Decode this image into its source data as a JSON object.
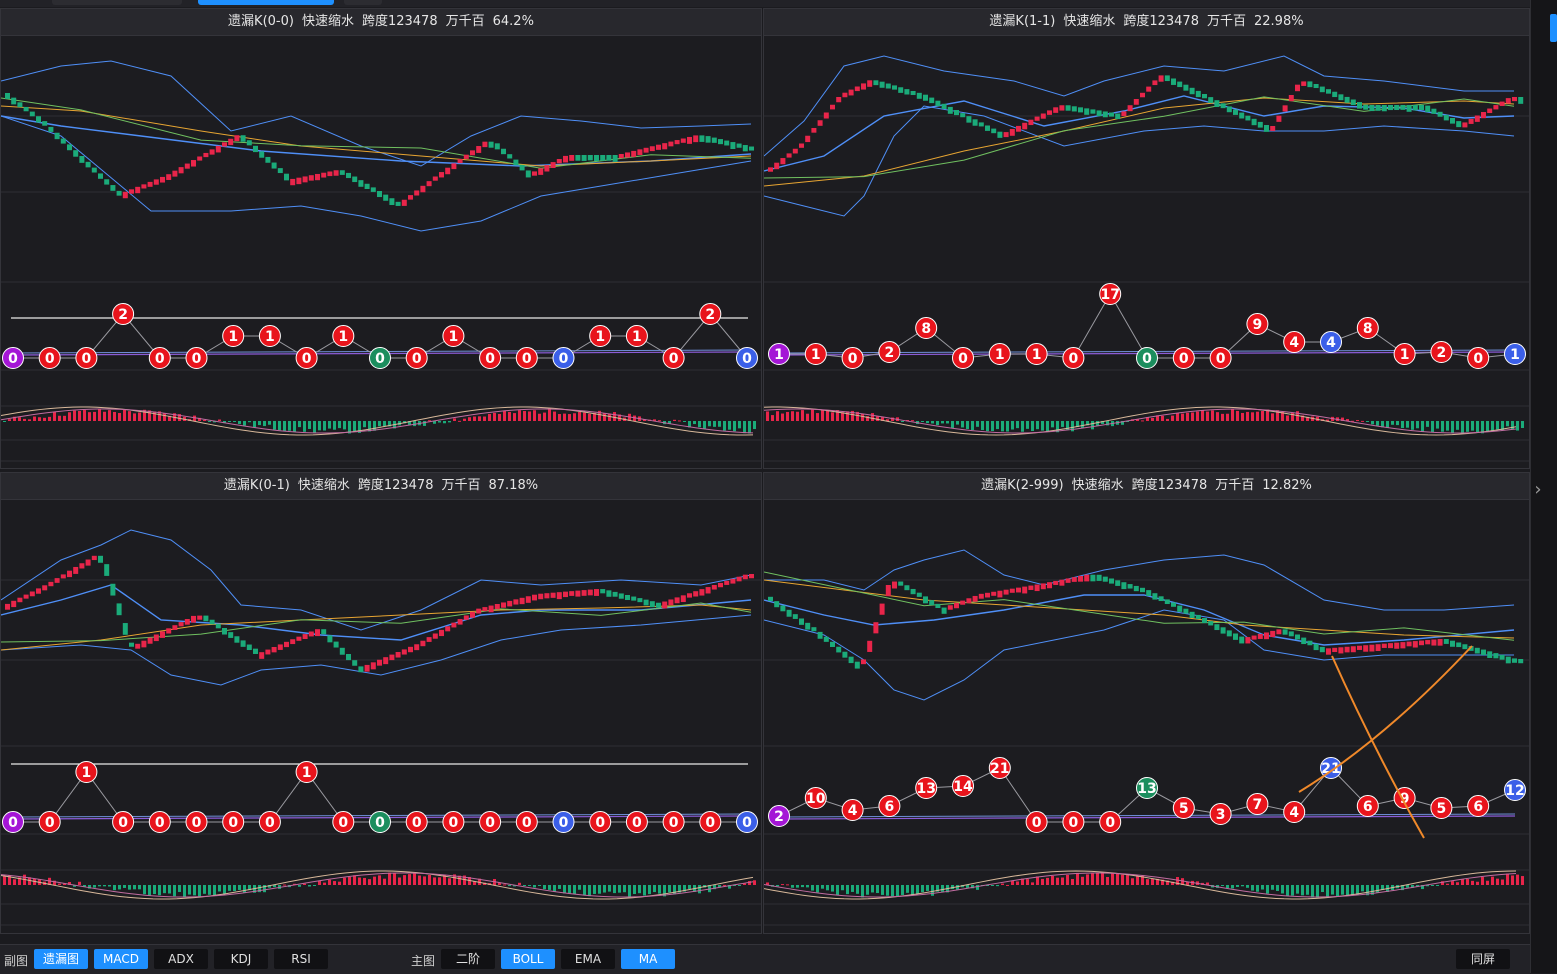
{
  "colors": {
    "up": "#e8254a",
    "down": "#1bab7a",
    "boll": "#4f8ff7",
    "ma_green": "#70c060",
    "ma_yellow": "#e7a532",
    "circle_red": "#e8141c",
    "circle_green": "#1b8e5e",
    "circle_blue": "#3b5fe8",
    "circle_purple": "#a416d6",
    "annotation": "#f0892a"
  },
  "panels": [
    {
      "id": "p00",
      "title": "遗漏K(0-0)",
      "mode": "快速缩水",
      "span": "跨度123478",
      "digits": "万千百",
      "pct": "64.2%"
    },
    {
      "id": "p11",
      "title": "遗漏K(1-1)",
      "mode": "快速缩水",
      "span": "跨度123478",
      "digits": "万千百",
      "pct": "22.98%"
    },
    {
      "id": "p01",
      "title": "遗漏K(0-1)",
      "mode": "快速缩水",
      "span": "跨度123478",
      "digits": "万千百",
      "pct": "87.18%"
    },
    {
      "id": "p2999",
      "title": "遗漏K(2-999)",
      "mode": "快速缩水",
      "span": "跨度123478",
      "digits": "万千百",
      "pct": "12.82%"
    }
  ],
  "chart_data": [
    {
      "type": "line",
      "panel": "遗漏K(0-0)",
      "series": [
        {
          "values": [
            0,
            0,
            0,
            2,
            0,
            0,
            1,
            1,
            0,
            1,
            0,
            0,
            1,
            0,
            0,
            0,
            1,
            1,
            0,
            2,
            0
          ]
        },
        {
          "values": [
            0,
            0,
            0,
            2,
            0,
            0,
            1,
            1,
            0,
            1,
            0,
            0,
            1,
            0,
            0,
            0,
            1,
            1,
            0,
            2,
            0
          ]
        }
      ],
      "markers": [
        {
          "label": "0",
          "color": "purple"
        },
        {
          "label": "0",
          "color": "red"
        },
        {
          "label": "0",
          "color": "red"
        },
        {
          "label": "2",
          "color": "red"
        },
        {
          "label": "0",
          "color": "red"
        },
        {
          "label": "0",
          "color": "red"
        },
        {
          "label": "1",
          "color": "red"
        },
        {
          "label": "1",
          "color": "red"
        },
        {
          "label": "0",
          "color": "red"
        },
        {
          "label": "1",
          "color": "red"
        },
        {
          "label": "0",
          "color": "green"
        },
        {
          "label": "0",
          "color": "red"
        },
        {
          "label": "1",
          "color": "red"
        },
        {
          "label": "0",
          "color": "red"
        },
        {
          "label": "0",
          "color": "red"
        },
        {
          "label": "0",
          "color": "blue"
        },
        {
          "label": "1",
          "color": "red"
        },
        {
          "label": "1",
          "color": "red"
        },
        {
          "label": "0",
          "color": "red"
        },
        {
          "label": "2",
          "color": "red"
        },
        {
          "label": "0",
          "color": "blue"
        }
      ]
    },
    {
      "type": "line",
      "panel": "遗漏K(1-1)",
      "markers": [
        {
          "label": "1",
          "color": "purple"
        },
        {
          "label": "1",
          "color": "red"
        },
        {
          "label": "0",
          "color": "red"
        },
        {
          "label": "2",
          "color": "red"
        },
        {
          "label": "8",
          "color": "red"
        },
        {
          "label": "0",
          "color": "red"
        },
        {
          "label": "1",
          "color": "red"
        },
        {
          "label": "1",
          "color": "red"
        },
        {
          "label": "0",
          "color": "red"
        },
        {
          "label": "17",
          "color": "red"
        },
        {
          "label": "0",
          "color": "green"
        },
        {
          "label": "0",
          "color": "red"
        },
        {
          "label": "0",
          "color": "red"
        },
        {
          "label": "9",
          "color": "red"
        },
        {
          "label": "4",
          "color": "red"
        },
        {
          "label": "4",
          "color": "blue"
        },
        {
          "label": "8",
          "color": "red"
        },
        {
          "label": "1",
          "color": "red"
        },
        {
          "label": "2",
          "color": "red"
        },
        {
          "label": "0",
          "color": "red"
        },
        {
          "label": "1",
          "color": "blue"
        }
      ]
    },
    {
      "type": "line",
      "panel": "遗漏K(0-1)",
      "markers": [
        {
          "label": "0",
          "color": "purple"
        },
        {
          "label": "0",
          "color": "red"
        },
        {
          "label": "1",
          "color": "red"
        },
        {
          "label": "0",
          "color": "red"
        },
        {
          "label": "0",
          "color": "red"
        },
        {
          "label": "0",
          "color": "red"
        },
        {
          "label": "0",
          "color": "red"
        },
        {
          "label": "0",
          "color": "red"
        },
        {
          "label": "1",
          "color": "red"
        },
        {
          "label": "0",
          "color": "red"
        },
        {
          "label": "0",
          "color": "green"
        },
        {
          "label": "0",
          "color": "red"
        },
        {
          "label": "0",
          "color": "red"
        },
        {
          "label": "0",
          "color": "red"
        },
        {
          "label": "0",
          "color": "red"
        },
        {
          "label": "0",
          "color": "blue"
        },
        {
          "label": "0",
          "color": "red"
        },
        {
          "label": "0",
          "color": "red"
        },
        {
          "label": "0",
          "color": "red"
        },
        {
          "label": "0",
          "color": "red"
        },
        {
          "label": "0",
          "color": "blue"
        }
      ]
    },
    {
      "type": "line",
      "panel": "遗漏K(2-999)",
      "markers": [
        {
          "label": "2",
          "color": "purple"
        },
        {
          "label": "10",
          "color": "red"
        },
        {
          "label": "4",
          "color": "red"
        },
        {
          "label": "6",
          "color": "red"
        },
        {
          "label": "13",
          "color": "red"
        },
        {
          "label": "14",
          "color": "red"
        },
        {
          "label": "21",
          "color": "red"
        },
        {
          "label": "0",
          "color": "red"
        },
        {
          "label": "0",
          "color": "red"
        },
        {
          "label": "0",
          "color": "red"
        },
        {
          "label": "13",
          "color": "green"
        },
        {
          "label": "5",
          "color": "red"
        },
        {
          "label": "3",
          "color": "red"
        },
        {
          "label": "7",
          "color": "red"
        },
        {
          "label": "4",
          "color": "red"
        },
        {
          "label": "21",
          "color": "blue"
        },
        {
          "label": "6",
          "color": "red"
        },
        {
          "label": "9",
          "color": "red"
        },
        {
          "label": "5",
          "color": "red"
        },
        {
          "label": "6",
          "color": "red"
        },
        {
          "label": "12",
          "color": "blue"
        }
      ]
    }
  ],
  "bottom": {
    "sub_label": "副图",
    "sub_buttons": [
      {
        "label": "遗漏图",
        "on": true
      },
      {
        "label": "MACD",
        "on": true
      },
      {
        "label": "ADX",
        "on": false
      },
      {
        "label": "KDJ",
        "on": false
      },
      {
        "label": "RSI",
        "on": false
      }
    ],
    "main_label": "主图",
    "main_buttons": [
      {
        "label": "二阶",
        "on": false
      },
      {
        "label": "BOLL",
        "on": true
      },
      {
        "label": "EMA",
        "on": false
      },
      {
        "label": "MA",
        "on": true
      }
    ],
    "same_screen": "同屏"
  }
}
